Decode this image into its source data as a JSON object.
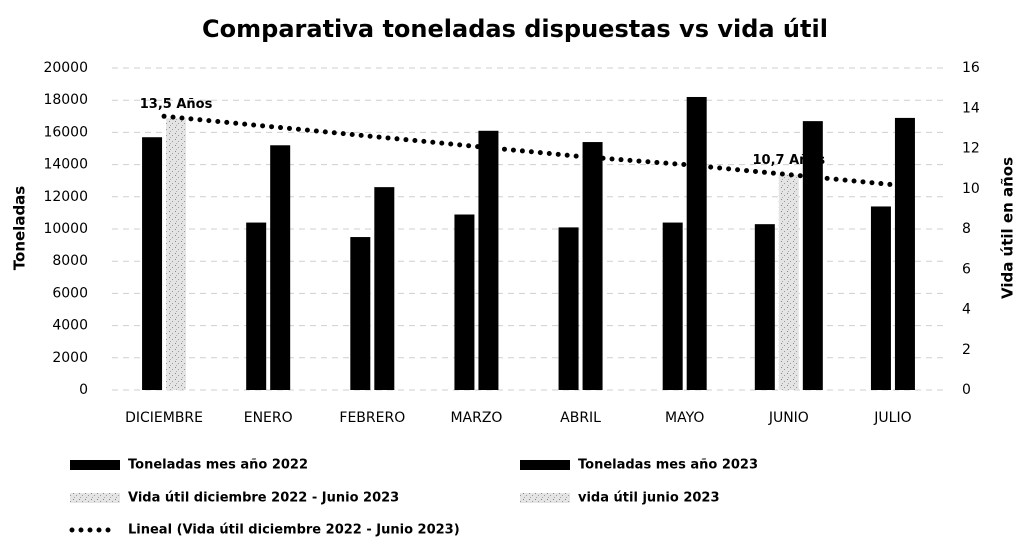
{
  "chart_data": {
    "type": "bar",
    "title": "Comparativa toneladas dispuestas vs vida útil",
    "categories": [
      "DICIEMBRE",
      "ENERO",
      "FEBRERO",
      "MARZO",
      "ABRIL",
      "MAYO",
      "JUNIO",
      "JULIO"
    ],
    "ylabel": "Toneladas",
    "y2label": "Vida útil en años",
    "ylim": [
      0,
      20000
    ],
    "yticks": [
      0,
      2000,
      4000,
      6000,
      8000,
      10000,
      12000,
      14000,
      16000,
      18000,
      20000
    ],
    "y2lim": [
      0,
      16
    ],
    "y2ticks": [
      0,
      2,
      4,
      6,
      8,
      10,
      12,
      14,
      16
    ],
    "grid": true,
    "series": [
      {
        "name": "Toneladas mes año 2022",
        "type": "bar",
        "color": "#000000",
        "values": [
          15700,
          10400,
          9500,
          10900,
          10100,
          10400,
          10300,
          11400
        ]
      },
      {
        "name": "Vida útil diciembre 2022 - Junio 2023",
        "type": "bar",
        "axis": "y2",
        "color": "#c8c8c8",
        "values": [
          13.5,
          null,
          null,
          null,
          null,
          null,
          null,
          null
        ],
        "value_labels": [
          "13,5 Años",
          null,
          null,
          null,
          null,
          null,
          null,
          null
        ]
      },
      {
        "name": "vida útil junio 2023",
        "type": "bar",
        "axis": "y2",
        "color": "#c8c8c8",
        "values": [
          null,
          null,
          null,
          null,
          null,
          null,
          10.7,
          null
        ],
        "value_labels": [
          null,
          null,
          null,
          null,
          null,
          null,
          "10,7 Años",
          null
        ]
      },
      {
        "name": "Toneladas mes año 2023",
        "type": "bar",
        "color": "#000000",
        "values": [
          null,
          15200,
          12600,
          16100,
          15400,
          18200,
          16700,
          16900
        ]
      },
      {
        "name": "Lineal (Vida útil diciembre 2022 - Junio 2023)",
        "type": "line",
        "axis": "y2",
        "color": "#000000",
        "values": [
          13.6,
          13.1,
          12.6,
          12.1,
          11.6,
          11.2,
          10.7,
          10.2
        ]
      }
    ]
  }
}
